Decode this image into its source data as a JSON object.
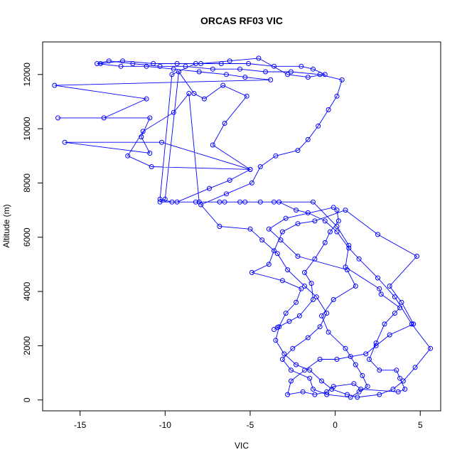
{
  "chart_data": {
    "type": "line",
    "title": "ORCAS RF03 VIC",
    "xlabel": "VIC",
    "ylabel": "Altitude (m)",
    "xlim": [
      -17.2,
      6.2
    ],
    "ylim": [
      -400,
      13200
    ],
    "x_ticks": [
      -15,
      -10,
      -5,
      0,
      5
    ],
    "y_ticks": [
      0,
      2000,
      4000,
      6000,
      8000,
      10000,
      12000
    ],
    "grid": false,
    "legend": "none",
    "series_color": "#0000ff",
    "points": [
      [
        -3.6,
        2600
      ],
      [
        -3.4,
        2670
      ],
      [
        -2.7,
        2900
      ],
      [
        -2.1,
        3100
      ],
      [
        -1.3,
        3700
      ],
      [
        -1.4,
        4300
      ],
      [
        -1.8,
        4700
      ],
      [
        -1.2,
        5200
      ],
      [
        -0.6,
        5800
      ],
      [
        -0.3,
        6200
      ],
      [
        0.2,
        6600
      ],
      [
        0.1,
        7000
      ],
      [
        -0.1,
        7100
      ],
      [
        -2.9,
        6700
      ],
      [
        -3.9,
        6300
      ],
      [
        -3.2,
        5900
      ],
      [
        -2.2,
        5300
      ],
      [
        0.7,
        4800
      ],
      [
        1.2,
        4200
      ],
      [
        -0.1,
        3700
      ],
      [
        -0.8,
        3100
      ],
      [
        -0.4,
        2500
      ],
      [
        0.6,
        1900
      ],
      [
        1.2,
        1300
      ],
      [
        1.6,
        900
      ],
      [
        1.9,
        500
      ],
      [
        1.4,
        300
      ],
      [
        0.9,
        100
      ],
      [
        -0.5,
        200
      ],
      [
        -1.3,
        400
      ],
      [
        -1.5,
        800
      ],
      [
        -2.6,
        1100
      ],
      [
        -3.1,
        1500
      ],
      [
        -2.5,
        1900
      ],
      [
        -1.6,
        2300
      ],
      [
        -0.9,
        2700
      ],
      [
        -0.5,
        3200
      ],
      [
        -1.1,
        3800
      ],
      [
        -1.8,
        4200
      ],
      [
        -2.8,
        4800
      ],
      [
        -3.4,
        5400
      ],
      [
        -4.3,
        5900
      ],
      [
        -5.0,
        6300
      ],
      [
        -6.8,
        6400
      ],
      [
        -7.9,
        7200
      ],
      [
        -6.4,
        7600
      ],
      [
        -4.9,
        8000
      ],
      [
        -4.4,
        8600
      ],
      [
        -3.5,
        9000
      ],
      [
        -2.2,
        9200
      ],
      [
        -1.6,
        9600
      ],
      [
        -1.0,
        10100
      ],
      [
        -0.4,
        10700
      ],
      [
        0.1,
        11200
      ],
      [
        0.4,
        11800
      ],
      [
        -0.9,
        12000
      ],
      [
        -2.6,
        12100
      ],
      [
        -4.1,
        12100
      ],
      [
        -5.6,
        12200
      ],
      [
        -7.2,
        12200
      ],
      [
        -8.8,
        12300
      ],
      [
        -10.3,
        12300
      ],
      [
        -11.9,
        12400
      ],
      [
        -13.3,
        12500
      ],
      [
        -14.0,
        12400
      ],
      [
        -12.6,
        12300
      ],
      [
        -11.1,
        12300
      ],
      [
        -9.5,
        12200
      ],
      [
        -8.0,
        12100
      ],
      [
        -6.4,
        12000
      ],
      [
        -5.3,
        11900
      ],
      [
        -3.8,
        11800
      ],
      [
        -16.5,
        11600
      ],
      [
        -11.1,
        11100
      ],
      [
        -13.6,
        10400
      ],
      [
        -16.3,
        10400
      ],
      [
        -10.9,
        10400
      ],
      [
        -11.4,
        9700
      ],
      [
        -10.9,
        9100
      ],
      [
        -15.9,
        9500
      ],
      [
        -10.2,
        9500
      ],
      [
        -5.0,
        8500
      ],
      [
        -6.2,
        8100
      ],
      [
        -7.4,
        7800
      ],
      [
        -9.3,
        7300
      ],
      [
        -10.3,
        7300
      ],
      [
        -10.0,
        7400
      ],
      [
        -9.2,
        12100
      ],
      [
        -8.3,
        11300
      ],
      [
        -7.7,
        11100
      ],
      [
        -6.6,
        11600
      ],
      [
        -5.2,
        11200
      ],
      [
        -6.5,
        10200
      ],
      [
        -7.2,
        9400
      ],
      [
        -5.0,
        8500
      ],
      [
        -10.8,
        8600
      ],
      [
        -12.2,
        9000
      ],
      [
        -11.3,
        9900
      ],
      [
        -9.5,
        10600
      ],
      [
        -8.6,
        11300
      ],
      [
        -8.0,
        7300
      ],
      [
        -6.5,
        7300
      ],
      [
        -5.3,
        7300
      ],
      [
        -3.6,
        7300
      ],
      [
        -1.3,
        7300
      ],
      [
        0.1,
        6400
      ],
      [
        0.8,
        5700
      ],
      [
        0.6,
        4900
      ],
      [
        2.6,
        4100
      ],
      [
        2.7,
        3900
      ],
      [
        3.8,
        3400
      ],
      [
        3.5,
        3200
      ],
      [
        2.9,
        2800
      ],
      [
        2.4,
        2100
      ],
      [
        2.0,
        1500
      ],
      [
        2.6,
        1100
      ],
      [
        3.6,
        1100
      ],
      [
        3.8,
        800
      ],
      [
        4.1,
        400
      ],
      [
        3.7,
        300
      ],
      [
        1.5,
        400
      ],
      [
        1.1,
        600
      ],
      [
        -0.1,
        500
      ],
      [
        -0.5,
        300
      ],
      [
        -1.2,
        200
      ],
      [
        -1.9,
        300
      ],
      [
        -2.8,
        200
      ],
      [
        -2.6,
        700
      ],
      [
        -1.8,
        1100
      ],
      [
        -0.9,
        1500
      ],
      [
        0.1,
        1500
      ],
      [
        0.9,
        1600
      ],
      [
        1.8,
        1700
      ],
      [
        2.4,
        2000
      ],
      [
        3.2,
        2400
      ],
      [
        4.6,
        2800
      ],
      [
        3.9,
        3600
      ],
      [
        3.2,
        4200
      ],
      [
        4.8,
        5300
      ],
      [
        2.5,
        6100
      ],
      [
        0.6,
        7000
      ],
      [
        -1.2,
        6600
      ],
      [
        -2.2,
        6500
      ],
      [
        -3.1,
        6200
      ],
      [
        -3.6,
        5500
      ],
      [
        -3.9,
        5000
      ],
      [
        -4.9,
        4700
      ],
      [
        -3.1,
        4400
      ],
      [
        -2.0,
        4100
      ],
      [
        -2.3,
        3600
      ],
      [
        -2.9,
        3200
      ],
      [
        -3.3,
        2700
      ],
      [
        -3.5,
        2200
      ],
      [
        -3.0,
        1700
      ],
      [
        -2.3,
        1300
      ],
      [
        -1.5,
        1100
      ],
      [
        -0.8,
        700
      ],
      [
        -0.2,
        400
      ],
      [
        0.7,
        200
      ],
      [
        1.3,
        100
      ],
      [
        2.6,
        200
      ],
      [
        3.4,
        400
      ],
      [
        4.0,
        700
      ],
      [
        4.7,
        1200
      ],
      [
        5.6,
        1900
      ],
      [
        4.5,
        2800
      ],
      [
        3.5,
        3800
      ],
      [
        2.5,
        4500
      ],
      [
        1.4,
        5200
      ],
      [
        0.8,
        5600
      ],
      [
        0.1,
        6200
      ],
      [
        -0.6,
        6600
      ],
      [
        -1.6,
        6900
      ],
      [
        -2.3,
        7000
      ],
      [
        -3.3,
        7300
      ],
      [
        -4.4,
        7300
      ],
      [
        -5.6,
        7300
      ],
      [
        -6.8,
        7300
      ],
      [
        -8.2,
        7300
      ],
      [
        -9.6,
        7300
      ],
      [
        -10.3,
        7400
      ],
      [
        -9.6,
        12000
      ],
      [
        -8.2,
        12400
      ],
      [
        -6.7,
        12400
      ],
      [
        -5.1,
        12400
      ],
      [
        -3.6,
        12300
      ],
      [
        -2.0,
        12300
      ],
      [
        -1.3,
        12200
      ],
      [
        -0.6,
        12000
      ],
      [
        -1.6,
        11900
      ],
      [
        -2.8,
        12000
      ],
      [
        -4.5,
        12600
      ],
      [
        -6.2,
        12500
      ],
      [
        -7.9,
        12400
      ],
      [
        -9.3,
        12400
      ],
      [
        -10.7,
        12400
      ],
      [
        -12.5,
        12500
      ],
      [
        -13.8,
        12400
      ]
    ]
  }
}
